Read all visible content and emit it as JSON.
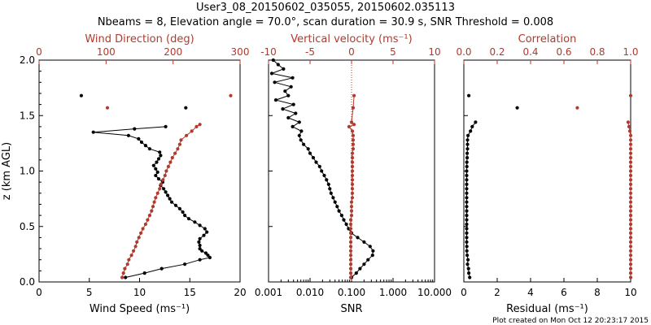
{
  "header": {
    "title_line1": "User3_08_20150602_035055, 20150602.035113",
    "title_line2": "Nbeams = 8, Elevation angle = 70.0°, scan duration = 30.9 s, SNR Threshold = 0.008"
  },
  "footer": {
    "created": "Plot created on Mon Oct 12 20:23:17 2015"
  },
  "colors": {
    "black_series": "#000000",
    "red_series": "#b03a2e"
  },
  "chart_data": [
    {
      "type": "line",
      "panel": "wind",
      "ylabel": "z (km AGL)",
      "ylim": [
        0.0,
        2.0
      ],
      "yticks": [
        "0.0",
        "0.5",
        "1.0",
        "1.5",
        "2.0"
      ],
      "xlabel": "Wind Speed (ms⁻¹)",
      "xlim": [
        0,
        20
      ],
      "xticks": [
        "0",
        "5",
        "10",
        "15",
        "20"
      ],
      "x2label": "Wind Direction (deg)",
      "x2lim": [
        0,
        300
      ],
      "x2ticks": [
        "0",
        "100",
        "200",
        "300"
      ],
      "series": [
        {
          "axis": "bottom",
          "color": "black",
          "z": [
            0.04,
            0.08,
            0.12,
            0.16,
            0.2,
            0.22,
            0.24,
            0.26,
            0.28,
            0.3,
            0.33,
            0.36,
            0.39,
            0.42,
            0.45,
            0.48,
            0.51,
            0.54,
            0.57,
            0.6,
            0.63,
            0.66,
            0.69,
            0.72,
            0.75,
            0.78,
            0.81,
            0.84,
            0.87,
            0.9,
            0.93,
            0.96,
            0.99,
            1.02,
            1.05,
            1.08,
            1.11,
            1.14,
            1.17,
            1.2,
            1.23,
            1.26,
            1.29,
            1.32,
            1.35,
            1.38,
            1.4
          ],
          "values": [
            8.6,
            10.5,
            12.2,
            14.5,
            16.0,
            17.0,
            16.8,
            16.6,
            16.2,
            16.0,
            16.0,
            15.9,
            16.0,
            16.4,
            16.7,
            16.5,
            16.0,
            15.5,
            14.9,
            14.5,
            14.3,
            14.0,
            13.6,
            13.2,
            13.0,
            12.8,
            12.6,
            12.4,
            12.1,
            12.3,
            11.9,
            11.6,
            11.8,
            11.6,
            11.4,
            11.7,
            11.9,
            12.1,
            12.0,
            11.0,
            10.6,
            10.2,
            9.9,
            8.9,
            5.4,
            9.5,
            12.6
          ]
        },
        {
          "axis": "bottom",
          "color": "black",
          "z": [
            1.57,
            1.68
          ],
          "values": [
            14.6,
            4.2
          ]
        },
        {
          "axis": "top",
          "color": "red",
          "z": [
            0.04,
            0.08,
            0.12,
            0.16,
            0.2,
            0.24,
            0.28,
            0.32,
            0.36,
            0.4,
            0.44,
            0.48,
            0.52,
            0.56,
            0.6,
            0.64,
            0.68,
            0.72,
            0.76,
            0.8,
            0.84,
            0.88,
            0.92,
            0.96,
            1.0,
            1.04,
            1.08,
            1.12,
            1.16,
            1.2,
            1.24,
            1.28,
            1.32,
            1.36,
            1.4,
            1.42
          ],
          "values": [
            124,
            126,
            128,
            132,
            134,
            138,
            141,
            144,
            146,
            149,
            152,
            155,
            159,
            162,
            165,
            168,
            170,
            172,
            174,
            177,
            180,
            182,
            185,
            188,
            190,
            193,
            196,
            199,
            203,
            207,
            210,
            212,
            220,
            228,
            235,
            240
          ]
        },
        {
          "axis": "top",
          "color": "red",
          "z": [
            1.57,
            1.68
          ],
          "values": [
            102,
            286
          ]
        }
      ]
    },
    {
      "type": "line",
      "panel": "vertical_velocity",
      "xlabel": "SNR",
      "xscale": "log",
      "xlim": [
        0.001,
        10.0
      ],
      "xticks": [
        "0.001",
        "0.010",
        "0.100",
        "1.000",
        "10.000"
      ],
      "x2label": "Vertical velocity (ms⁻¹)",
      "x2lim": [
        -10,
        10
      ],
      "x2ticks": [
        "-10",
        "-5",
        "0",
        "5",
        "10"
      ],
      "series": [
        {
          "axis": "bottom",
          "color": "black",
          "z": [
            0.04,
            0.08,
            0.12,
            0.16,
            0.2,
            0.24,
            0.28,
            0.32,
            0.36,
            0.4,
            0.44,
            0.48,
            0.52,
            0.56,
            0.6,
            0.64,
            0.68,
            0.72,
            0.76,
            0.8,
            0.84,
            0.88,
            0.92,
            0.96,
            1.0,
            1.04,
            1.08,
            1.12,
            1.16,
            1.2,
            1.24,
            1.28,
            1.32,
            1.36,
            1.4,
            1.44,
            1.48,
            1.52,
            1.56,
            1.6,
            1.64,
            1.68,
            1.72,
            1.76,
            1.8,
            1.84,
            1.88,
            1.92,
            1.96,
            2.0
          ],
          "values": [
            0.1,
            0.13,
            0.16,
            0.2,
            0.25,
            0.32,
            0.33,
            0.28,
            0.2,
            0.14,
            0.1,
            0.085,
            0.075,
            0.065,
            0.058,
            0.05,
            0.045,
            0.04,
            0.036,
            0.032,
            0.03,
            0.028,
            0.025,
            0.022,
            0.019,
            0.017,
            0.014,
            0.012,
            0.01,
            0.009,
            0.007,
            0.006,
            0.0055,
            0.0062,
            0.0038,
            0.0055,
            0.003,
            0.0045,
            0.0022,
            0.004,
            0.0015,
            0.003,
            0.0025,
            0.0035,
            0.0014,
            0.0038,
            0.0012,
            0.0023,
            0.0017,
            0.0013
          ]
        },
        {
          "axis": "top",
          "color": "red",
          "z": [
            0.04,
            0.08,
            0.12,
            0.16,
            0.2,
            0.24,
            0.28,
            0.32,
            0.36,
            0.4,
            0.44,
            0.48,
            0.52,
            0.56,
            0.6,
            0.64,
            0.68,
            0.72,
            0.76,
            0.8,
            0.84,
            0.88,
            0.92,
            0.96,
            1.0,
            1.04,
            1.08,
            1.12,
            1.16,
            1.2,
            1.24,
            1.28,
            1.32,
            1.36,
            1.4,
            1.42,
            1.44,
            1.57,
            1.68
          ],
          "values": [
            -0.1,
            -0.1,
            -0.1,
            -0.1,
            -0.1,
            -0.1,
            -0.1,
            -0.1,
            -0.1,
            -0.1,
            -0.1,
            -0.1,
            -0.1,
            -0.1,
            0.0,
            0.0,
            0.0,
            0.0,
            0.1,
            0.1,
            0.1,
            0.1,
            0.1,
            0.1,
            0.1,
            0.1,
            0.1,
            0.1,
            0.1,
            0.2,
            0.2,
            0.2,
            0.2,
            0.1,
            -0.3,
            0.3,
            0.0,
            0.2,
            0.3
          ]
        }
      ],
      "reference_line": {
        "x2": 0,
        "style": "dotted",
        "color": "red"
      }
    },
    {
      "type": "line",
      "panel": "residual_correlation",
      "xlabel": "Residual (ms⁻¹)",
      "xlim": [
        0,
        10
      ],
      "xticks": [
        "0",
        "2",
        "4",
        "6",
        "8",
        "10"
      ],
      "x2label": "Correlation",
      "x2lim": [
        0.0,
        1.0
      ],
      "x2ticks": [
        "0.0",
        "0.2",
        "0.4",
        "0.6",
        "0.8",
        "1.0"
      ],
      "series": [
        {
          "axis": "bottom",
          "color": "black",
          "z": [
            0.04,
            0.08,
            0.12,
            0.16,
            0.2,
            0.24,
            0.28,
            0.32,
            0.36,
            0.4,
            0.44,
            0.48,
            0.52,
            0.56,
            0.6,
            0.64,
            0.68,
            0.72,
            0.76,
            0.8,
            0.84,
            0.88,
            0.92,
            0.96,
            1.0,
            1.04,
            1.08,
            1.12,
            1.16,
            1.2,
            1.24,
            1.28,
            1.32,
            1.36,
            1.4,
            1.44
          ],
          "values": [
            0.35,
            0.3,
            0.28,
            0.22,
            0.25,
            0.2,
            0.18,
            0.18,
            0.17,
            0.17,
            0.17,
            0.17,
            0.17,
            0.17,
            0.17,
            0.17,
            0.17,
            0.17,
            0.17,
            0.17,
            0.17,
            0.17,
            0.17,
            0.17,
            0.17,
            0.18,
            0.18,
            0.2,
            0.2,
            0.22,
            0.22,
            0.22,
            0.25,
            0.4,
            0.5,
            0.7
          ]
        },
        {
          "axis": "bottom",
          "color": "black",
          "z": [
            1.57,
            1.68
          ],
          "values": [
            3.2,
            0.3
          ]
        },
        {
          "axis": "top",
          "color": "red",
          "z": [
            0.04,
            0.08,
            0.12,
            0.16,
            0.2,
            0.24,
            0.28,
            0.32,
            0.36,
            0.4,
            0.44,
            0.48,
            0.52,
            0.56,
            0.6,
            0.64,
            0.68,
            0.72,
            0.76,
            0.8,
            0.84,
            0.88,
            0.92,
            0.96,
            1.0,
            1.04,
            1.08,
            1.12,
            1.16,
            1.2,
            1.24,
            1.28,
            1.32,
            1.36,
            1.4,
            1.44
          ],
          "values": [
            1.0,
            1.0,
            1.0,
            1.0,
            1.0,
            1.0,
            1.0,
            1.0,
            1.0,
            1.0,
            1.0,
            1.0,
            1.0,
            1.0,
            1.0,
            1.0,
            1.0,
            1.0,
            1.0,
            1.0,
            1.0,
            1.0,
            1.0,
            1.0,
            1.0,
            1.0,
            1.0,
            1.0,
            1.0,
            1.0,
            1.0,
            1.0,
            1.0,
            0.995,
            0.99,
            0.985
          ]
        },
        {
          "axis": "top",
          "color": "red",
          "z": [
            1.57,
            1.68
          ],
          "values": [
            0.68,
            1.0
          ]
        }
      ]
    }
  ]
}
